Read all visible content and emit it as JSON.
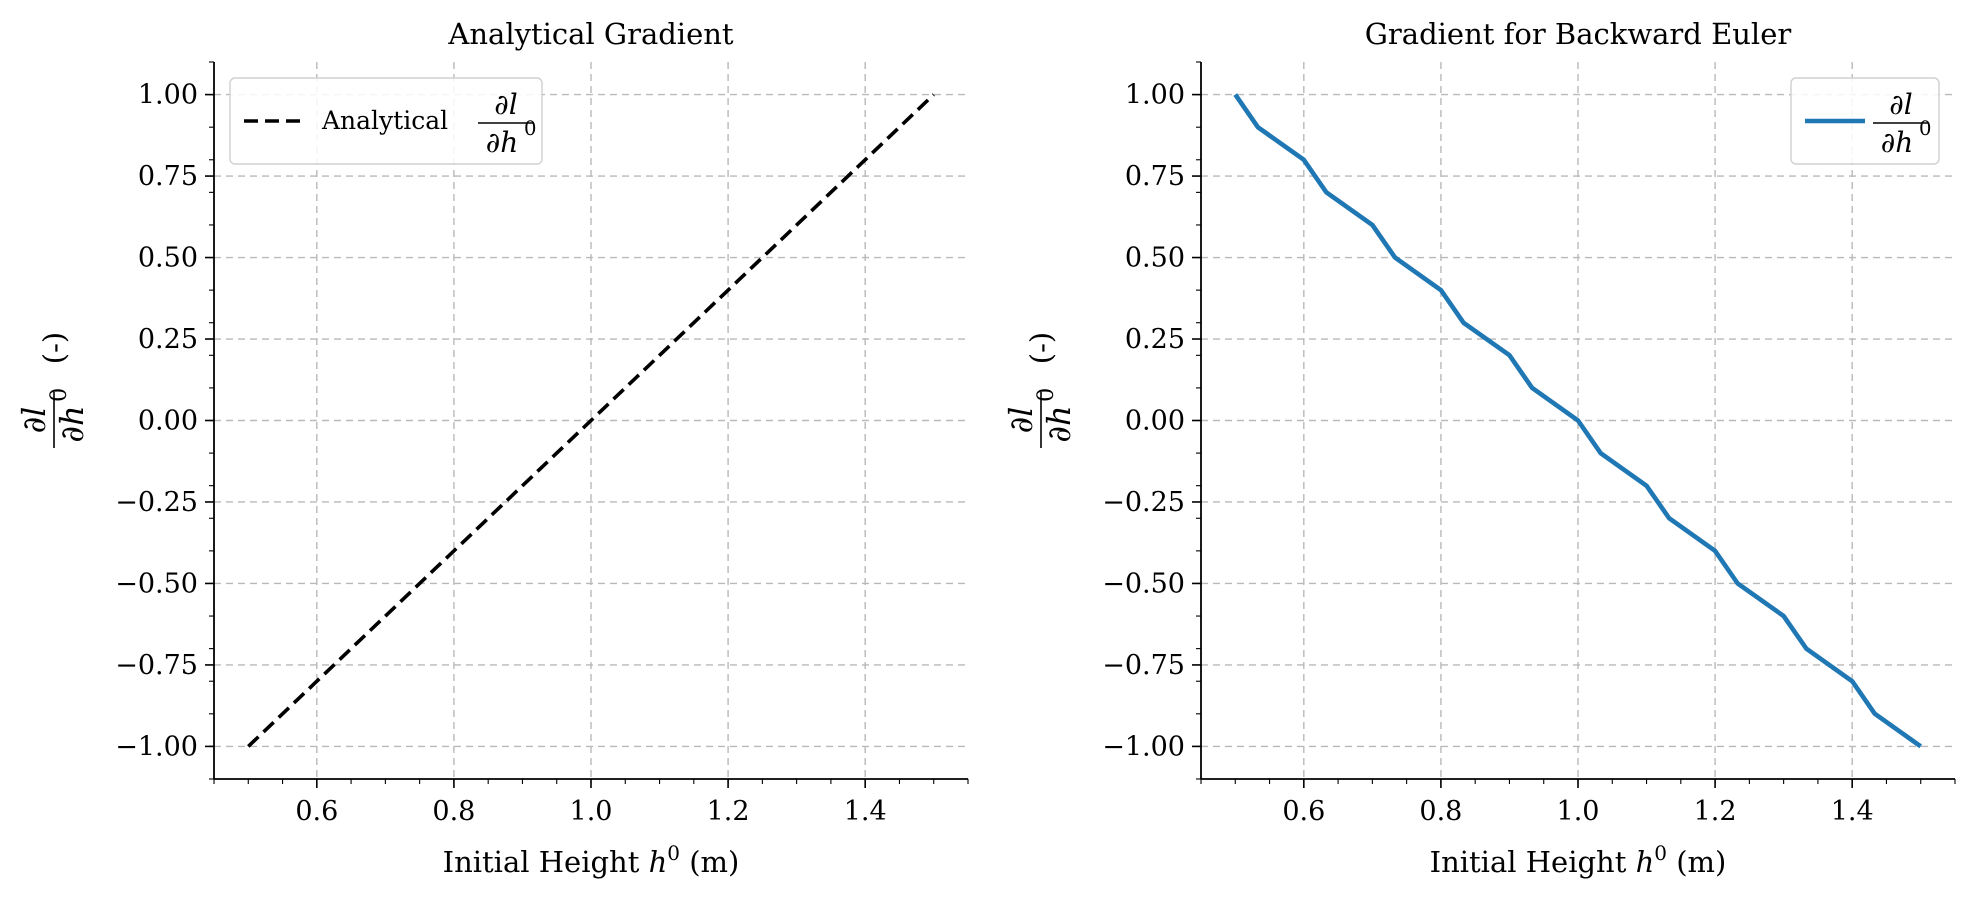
{
  "chart_data": [
    {
      "type": "line",
      "title": "Analytical Gradient",
      "xlabel": {
        "text": "Initial Height ",
        "var": "h",
        "sup": "0",
        "unit": " (m)"
      },
      "ylabel": {
        "num": "∂l",
        "den": "∂h",
        "den_sup": "0",
        "unit": "(-)"
      },
      "xlim": [
        0.45,
        1.55
      ],
      "ylim": [
        -1.1,
        1.1
      ],
      "xticks": [
        0.6,
        0.8,
        1.0,
        1.2,
        1.4
      ],
      "xtick_labels": [
        "0.6",
        "0.8",
        "1.0",
        "1.2",
        "1.4"
      ],
      "yticks": [
        -1.0,
        -0.75,
        -0.5,
        -0.25,
        0.0,
        0.25,
        0.5,
        0.75,
        1.0
      ],
      "ytick_labels": [
        "−1.00",
        "−0.75",
        "−0.50",
        "−0.25",
        "0.00",
        "0.25",
        "0.50",
        "0.75",
        "1.00"
      ],
      "grid": true,
      "legend": "top-left",
      "series": [
        {
          "name": "Analytical",
          "name_math": {
            "num": "∂l",
            "den": "∂h",
            "den_sup": "0"
          },
          "color": "#000000",
          "dashed": true,
          "x": [
            0.5,
            1.5
          ],
          "y": [
            -1.0,
            1.0
          ]
        }
      ]
    },
    {
      "type": "line",
      "title": "Gradient for Backward Euler",
      "xlabel": {
        "text": "Initial Height ",
        "var": "h",
        "sup": "0",
        "unit": " (m)"
      },
      "ylabel": {
        "num": "∂l",
        "den": "∂h",
        "den_sup": "0",
        "unit": "(-)"
      },
      "xlim": [
        0.45,
        1.55
      ],
      "ylim": [
        -1.1,
        1.1
      ],
      "xticks": [
        0.6,
        0.8,
        1.0,
        1.2,
        1.4
      ],
      "xtick_labels": [
        "0.6",
        "0.8",
        "1.0",
        "1.2",
        "1.4"
      ],
      "yticks": [
        -1.0,
        -0.75,
        -0.5,
        -0.25,
        0.0,
        0.25,
        0.5,
        0.75,
        1.0
      ],
      "ytick_labels": [
        "−1.00",
        "−0.75",
        "−0.50",
        "−0.25",
        "0.00",
        "0.25",
        "0.50",
        "0.75",
        "1.00"
      ],
      "grid": true,
      "legend": "top-right",
      "series": [
        {
          "name": "",
          "name_math": {
            "num": "∂l",
            "den": "∂h",
            "den_sup": "0"
          },
          "color": "#1f77b4",
          "dashed": false,
          "x": [
            0.5,
            0.533,
            0.6,
            0.633,
            0.7,
            0.733,
            0.8,
            0.833,
            0.9,
            0.933,
            1.0,
            1.033,
            1.1,
            1.133,
            1.2,
            1.233,
            1.3,
            1.333,
            1.4,
            1.433,
            1.5
          ],
          "y": [
            1.0,
            0.9,
            0.8,
            0.7,
            0.6,
            0.5,
            0.4,
            0.3,
            0.2,
            0.1,
            0.0,
            -0.1,
            -0.2,
            -0.3,
            -0.4,
            -0.5,
            -0.6,
            -0.7,
            -0.8,
            -0.9,
            -1.0
          ]
        }
      ]
    }
  ]
}
